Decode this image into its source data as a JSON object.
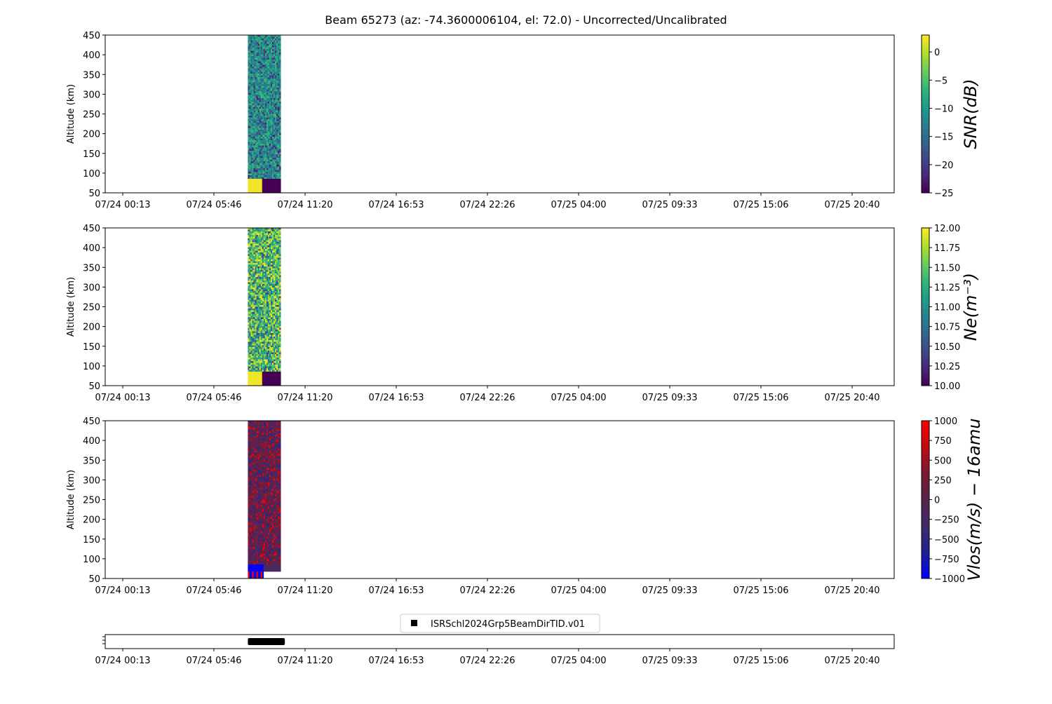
{
  "title": "Beam 65273 (az: -74.3600006104, el: 72.0) - Uncorrected/Uncalibrated",
  "colors": {
    "axes": "#000000",
    "background": "#ffffff",
    "viridis": [
      "#440154",
      "#482878",
      "#3e4989",
      "#31688e",
      "#26828e",
      "#1f9e89",
      "#35b779",
      "#6ece58",
      "#b5de2b",
      "#fde725"
    ],
    "bwr_dark": [
      "#0000ff",
      "#202095",
      "#402a6a",
      "#55244c",
      "#7a1a30",
      "#c00a10",
      "#ff0000"
    ]
  },
  "chart_data": [
    {
      "type": "heatmap",
      "panel": "snr",
      "ylabel": "Altitude (km)",
      "ylim": [
        50,
        450
      ],
      "yticks": [
        "50",
        "100",
        "150",
        "200",
        "250",
        "300",
        "350",
        "400",
        "450"
      ],
      "xticks": [
        "07/24 00:13",
        "07/24 05:46",
        "07/24 11:20",
        "07/24 16:53",
        "07/24 22:26",
        "07/25 04:00",
        "07/25 09:33",
        "07/25 15:06",
        "07/25 20:40"
      ],
      "data_extent": {
        "start": "07/24 07:50",
        "end": "07/24 09:50",
        "bottom_km": 50,
        "top_km": 450
      },
      "colorbar": {
        "label": "SNR(dB)",
        "cmap": "viridis",
        "range": [
          -25,
          3
        ],
        "ticks": [
          "0",
          "−5",
          "−10",
          "−15",
          "−20",
          "−25"
        ]
      }
    },
    {
      "type": "heatmap",
      "panel": "ne",
      "ylabel": "Altitude (km)",
      "ylim": [
        50,
        450
      ],
      "yticks": [
        "50",
        "100",
        "150",
        "200",
        "250",
        "300",
        "350",
        "400",
        "450"
      ],
      "xticks": [
        "07/24 00:13",
        "07/24 05:46",
        "07/24 11:20",
        "07/24 16:53",
        "07/24 22:26",
        "07/25 04:00",
        "07/25 09:33",
        "07/25 15:06",
        "07/25 20:40"
      ],
      "data_extent": {
        "start": "07/24 07:50",
        "end": "07/24 09:50",
        "bottom_km": 50,
        "top_km": 450
      },
      "colorbar": {
        "label": "Ne(m⁻³)",
        "cmap": "viridis",
        "range": [
          10.0,
          12.0
        ],
        "ticks": [
          "12.00",
          "11.75",
          "11.50",
          "11.25",
          "11.00",
          "10.75",
          "10.50",
          "10.25",
          "10.00"
        ]
      }
    },
    {
      "type": "heatmap",
      "panel": "vlos",
      "ylabel": "Altitude (km)",
      "ylim": [
        50,
        450
      ],
      "yticks": [
        "50",
        "100",
        "150",
        "200",
        "250",
        "300",
        "350",
        "400",
        "450"
      ],
      "xticks": [
        "07/24 00:13",
        "07/24 05:46",
        "07/24 11:20",
        "07/24 16:53",
        "07/24 22:26",
        "07/25 04:00",
        "07/25 09:33",
        "07/25 15:06",
        "07/25 20:40"
      ],
      "data_extent": {
        "start": "07/24 07:50",
        "end": "07/24 09:50",
        "bottom_km": 50,
        "top_km": 450
      },
      "colorbar": {
        "label": "Vlos(m/s) − 16amu",
        "cmap": "bwr",
        "range": [
          -1000,
          1000
        ],
        "ticks": [
          "1000",
          "750",
          "500",
          "250",
          "0",
          "−250",
          "−500",
          "−750",
          "−1000"
        ]
      }
    },
    {
      "type": "timeline",
      "panel": "experiments",
      "legend": "ISRSchl2024Grp5BeamDirTID.v01",
      "legend_placement": "top-center",
      "bar": {
        "start": "07/24 07:50",
        "end": "07/24 10:05"
      },
      "xticks": [
        "07/24 00:13",
        "07/24 05:46",
        "07/24 11:20",
        "07/24 16:53",
        "07/24 22:26",
        "07/25 04:00",
        "07/25 09:33",
        "07/25 15:06",
        "07/25 20:40"
      ]
    }
  ]
}
